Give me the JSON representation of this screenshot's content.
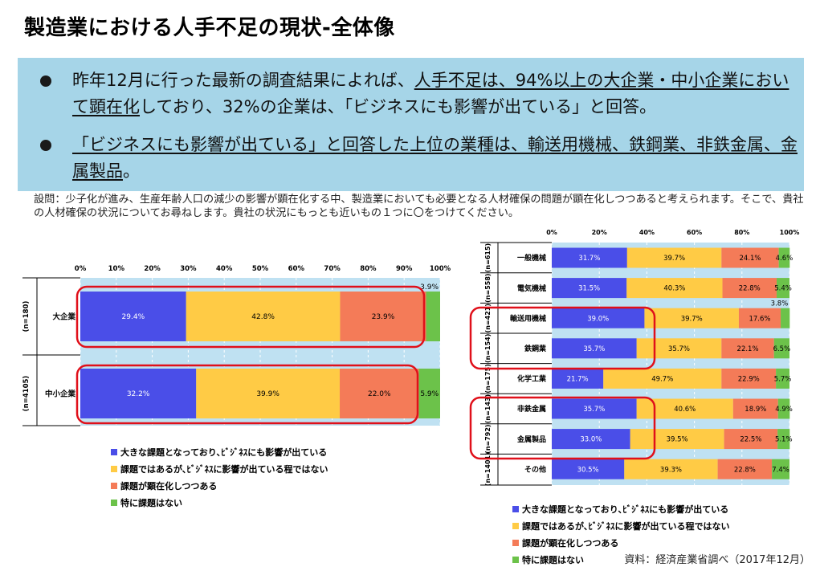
{
  "title": "製造業における人手不足の現状-全体像",
  "summary": {
    "bullet1": {
      "pre": "昨年12月に行った最新の調査結果によれば、",
      "underlined": "人手不足は、94%以上の大企業・中小企業において顕在化",
      "post": "しており、32%の企業は、「ビジネスにも影響が出ている」と回答。"
    },
    "bullet2": {
      "underlined": "「ビジネスにも影響が出ている」と回答した上位の業種は、輸送用機械、鉄鋼業、非鉄金属、金属製品",
      "post": "。"
    }
  },
  "question": "設問：少子化が進み、生産年齢人口の減少の影響が顕在化する中、製造業においても必要となる人材確保の問題が顕在化しつつあると考えられます。そこで、貴社の人材確保の状況についてお尋ねします。貴社の状況にもっとも近いもの１つに〇をつけてください。",
  "source": "資料：経済産業省調べ（2017年12月）",
  "colors": {
    "s1": "#4a4ee8",
    "s2": "#ffcb45",
    "s3": "#f47b58",
    "s4": "#6cc24a",
    "plot_bg": "#bfe1f2",
    "highlight": "#e0101a"
  },
  "chart_data": [
    {
      "type": "bar",
      "orientation": "horizontal",
      "stacked": true,
      "axis_ticks": [
        "0%",
        "10%",
        "20%",
        "30%",
        "40%",
        "50%",
        "60%",
        "70%",
        "80%",
        "90%",
        "100%"
      ],
      "xlim": [
        0,
        100
      ],
      "categories": [
        "大企業",
        "中小企業"
      ],
      "sample_sizes": [
        "(n=180)",
        "(n=4105)"
      ],
      "highlighted": [
        "大企業",
        "中小企業"
      ],
      "series": [
        {
          "name": "大きな課題となっており､ﾋﾞｼﾞﾈｽにも影響が出ている",
          "values": [
            29.4,
            32.2
          ],
          "labels": [
            "29.4%",
            "32.2%"
          ]
        },
        {
          "name": "課題ではあるが､ﾋﾞｼﾞﾈｽに影響が出ている程ではない",
          "values": [
            42.8,
            39.9
          ],
          "labels": [
            "42.8%",
            "39.9%"
          ]
        },
        {
          "name": "課題が顕在化しつつある",
          "values": [
            23.9,
            22.0
          ],
          "labels": [
            "23.9%",
            "22.0%"
          ]
        },
        {
          "name": "特に課題はない",
          "values": [
            3.9,
            5.9
          ],
          "labels": [
            "3.9%",
            "5.9%"
          ]
        }
      ],
      "legend_position": "bottom"
    },
    {
      "type": "bar",
      "orientation": "horizontal",
      "stacked": true,
      "axis_ticks": [
        "0%",
        "20%",
        "40%",
        "60%",
        "80%",
        "100%"
      ],
      "xlim": [
        0,
        100
      ],
      "categories": [
        "一般機械",
        "電気機械",
        "輸送用機械",
        "鉄鋼業",
        "化学工業",
        "非鉄金属",
        "金属製品",
        "その他"
      ],
      "sample_sizes": [
        "(n=615)",
        "(n=558)",
        "(n=421)",
        "(n=154)",
        "(n=175)",
        "(n=143)",
        "(n=792)",
        "(n=1401)"
      ],
      "highlighted": [
        [
          "輸送用機械",
          "鉄鋼業"
        ],
        [
          "非鉄金属",
          "金属製品"
        ]
      ],
      "series": [
        {
          "name": "大きな課題となっており､ﾋﾞｼﾞﾈｽにも影響が出ている",
          "values": [
            31.7,
            31.5,
            39.0,
            35.7,
            21.7,
            35.7,
            33.0,
            30.5
          ],
          "labels": [
            "31.7%",
            "31.5%",
            "39.0%",
            "35.7%",
            "21.7%",
            "35.7%",
            "33.0%",
            "30.5%"
          ]
        },
        {
          "name": "課題ではあるが､ﾋﾞｼﾞﾈｽに影響が出ている程ではない",
          "values": [
            39.7,
            40.3,
            39.7,
            35.7,
            49.7,
            40.6,
            39.5,
            39.3
          ],
          "labels": [
            "39.7%",
            "40.3%",
            "39.7%",
            "35.7%",
            "49.7%",
            "40.6%",
            "39.5%",
            "39.3%"
          ]
        },
        {
          "name": "課題が顕在化しつつある",
          "values": [
            24.1,
            22.8,
            17.6,
            22.1,
            22.9,
            18.9,
            22.5,
            22.8
          ],
          "labels": [
            "24.1%",
            "22.8%",
            "17.6%",
            "22.1%",
            "22.9%",
            "18.9%",
            "22.5%",
            "22.8%"
          ]
        },
        {
          "name": "特に課題はない",
          "values": [
            4.6,
            5.4,
            3.8,
            6.5,
            5.7,
            4.9,
            5.1,
            7.4
          ],
          "labels": [
            "4.6%",
            "5.4%",
            "3.8%",
            "6.5%",
            "5.7%",
            "4.9%",
            "5.1%",
            "7.4%"
          ]
        }
      ],
      "legend_position": "bottom"
    }
  ]
}
